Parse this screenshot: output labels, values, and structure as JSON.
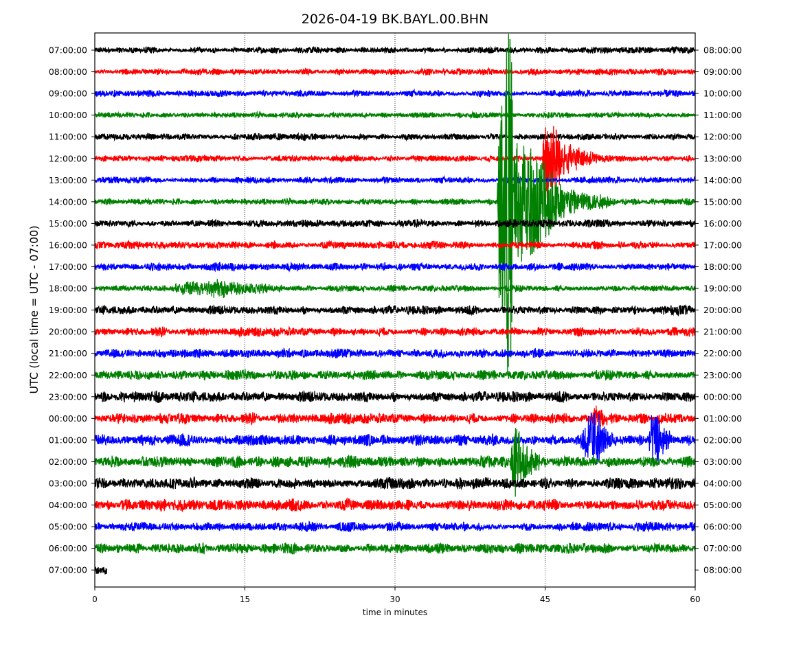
{
  "chart_data": {
    "type": "line",
    "title": "2026-04-19 BK.BAYL.00.BHN",
    "xlabel": "time in minutes",
    "ylabel": "UTC (local time = UTC - 07:00)",
    "xlim": [
      0,
      60
    ],
    "xticks": [
      "0",
      "15",
      "30",
      "45",
      "60"
    ],
    "xtick_values": [
      0,
      15,
      30,
      45,
      60
    ],
    "grid": "vertical dotted at 15, 30, 45",
    "colors": [
      "#000000",
      "#ff0000",
      "#0000ff",
      "#008000"
    ],
    "left_labels": [
      "07:00:00",
      "08:00:00",
      "09:00:00",
      "10:00:00",
      "11:00:00",
      "12:00:00",
      "13:00:00",
      "14:00:00",
      "15:00:00",
      "16:00:00",
      "17:00:00",
      "18:00:00",
      "19:00:00",
      "20:00:00",
      "21:00:00",
      "22:00:00",
      "23:00:00",
      "00:00:00",
      "01:00:00",
      "02:00:00",
      "03:00:00",
      "04:00:00",
      "05:00:00",
      "06:00:00",
      "07:00:00"
    ],
    "right_labels": [
      "08:00:00",
      "09:00:00",
      "10:00:00",
      "11:00:00",
      "12:00:00",
      "13:00:00",
      "14:00:00",
      "15:00:00",
      "16:00:00",
      "17:00:00",
      "18:00:00",
      "19:00:00",
      "20:00:00",
      "21:00:00",
      "22:00:00",
      "23:00:00",
      "00:00:00",
      "01:00:00",
      "02:00:00",
      "03:00:00",
      "04:00:00",
      "05:00:00",
      "06:00:00",
      "07:00:00",
      "08:00:00"
    ],
    "noise_level": [
      0.1,
      0.1,
      0.1,
      0.09,
      0.1,
      0.1,
      0.1,
      0.1,
      0.12,
      0.12,
      0.12,
      0.1,
      0.14,
      0.14,
      0.14,
      0.15,
      0.17,
      0.17,
      0.18,
      0.18,
      0.18,
      0.18,
      0.15,
      0.16,
      0.2
    ],
    "trace_end_min": [
      60,
      60,
      60,
      60,
      60,
      60,
      60,
      60,
      60,
      60,
      60,
      60,
      60,
      60,
      60,
      60,
      60,
      60,
      60,
      60,
      60,
      60,
      60,
      60,
      1.2
    ],
    "events": [
      {
        "row": 7,
        "envelope": [
          [
            40.2,
            0
          ],
          [
            40.4,
            4.5
          ],
          [
            41.0,
            5.5
          ],
          [
            41.2,
            8
          ],
          [
            41.7,
            8
          ],
          [
            41.8,
            3
          ],
          [
            43.5,
            2.5
          ],
          [
            45.5,
            1.6
          ],
          [
            47,
            0.6
          ],
          [
            50,
            0.35
          ],
          [
            52,
            0.1
          ]
        ]
      },
      {
        "row": 5,
        "envelope": [
          [
            44.7,
            0
          ],
          [
            45,
            2.2
          ],
          [
            46,
            1.6
          ],
          [
            47,
            0.7
          ],
          [
            49,
            0.35
          ],
          [
            51,
            0.1
          ]
        ]
      },
      {
        "row": 11,
        "envelope": [
          [
            7.5,
            0
          ],
          [
            9,
            0.3
          ],
          [
            12,
            0.3
          ],
          [
            16,
            0.2
          ],
          [
            19,
            0.05
          ]
        ]
      },
      {
        "row": 19,
        "envelope": [
          [
            41.5,
            0
          ],
          [
            42,
            1.8
          ],
          [
            42.5,
            1.2
          ],
          [
            43.5,
            0.6
          ],
          [
            45,
            0.1
          ]
        ]
      },
      {
        "row": 18,
        "envelope": [
          [
            48.5,
            0
          ],
          [
            49.2,
            1
          ],
          [
            50.2,
            1.2
          ],
          [
            51,
            0.4
          ],
          [
            52,
            0.1
          ],
          [
            55.3,
            0
          ],
          [
            55.7,
            1.2
          ],
          [
            56.5,
            0.8
          ],
          [
            57.5,
            0.2
          ]
        ]
      },
      {
        "row": 17,
        "envelope": [
          [
            49.5,
            0
          ],
          [
            50,
            0.5
          ],
          [
            51,
            0.3
          ],
          [
            52,
            0.05
          ]
        ]
      }
    ]
  }
}
